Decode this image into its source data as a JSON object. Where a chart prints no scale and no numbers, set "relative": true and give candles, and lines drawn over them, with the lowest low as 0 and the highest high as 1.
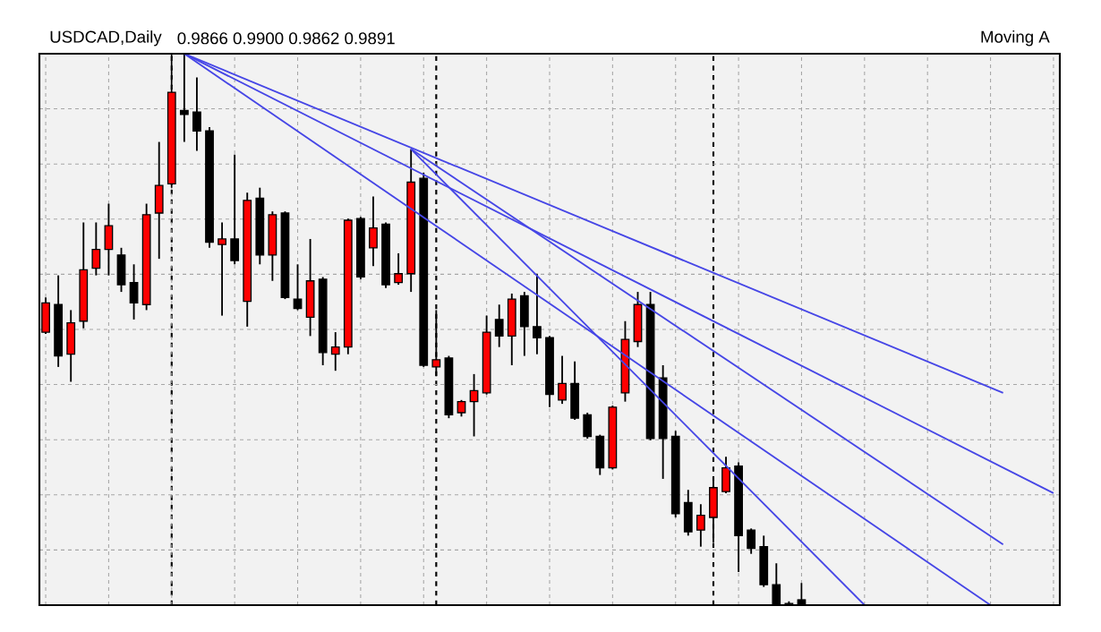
{
  "chart_data": {
    "type": "candlestick",
    "title": "USDCAD,Daily",
    "annotations": [
      "0.9866 0.9900 0.9862 0.9891",
      "Moving A"
    ],
    "relative": true,
    "grid": true,
    "categories": [
      null,
      null,
      null,
      null,
      null,
      null,
      null,
      null,
      null,
      null,
      null,
      null,
      null,
      null,
      null,
      null,
      null,
      null,
      null,
      null,
      null,
      null,
      null,
      null,
      null,
      null,
      null,
      null,
      null,
      null,
      null,
      null,
      null,
      null,
      null,
      null,
      null,
      null,
      null,
      null,
      null,
      null,
      null,
      null,
      null,
      null,
      null,
      null,
      null,
      null,
      null,
      null,
      null,
      null,
      null,
      null,
      null,
      null,
      null,
      null,
      null,
      null,
      null,
      null,
      null,
      null,
      null,
      null,
      null,
      null,
      null,
      null,
      null,
      null,
      null,
      null,
      null,
      null,
      null,
      null,
      null
    ],
    "ohlc": [
      [
        0.495,
        0.558,
        0.492,
        0.548
      ],
      [
        0.545,
        0.598,
        0.432,
        0.452
      ],
      [
        0.455,
        0.535,
        0.405,
        0.512
      ],
      [
        0.515,
        0.694,
        0.502,
        0.608
      ],
      [
        0.611,
        0.694,
        0.598,
        0.645
      ],
      [
        0.645,
        0.728,
        0.598,
        0.688
      ],
      [
        0.635,
        0.648,
        0.568,
        0.581
      ],
      [
        0.585,
        0.618,
        0.518,
        0.548
      ],
      [
        0.545,
        0.728,
        0.535,
        0.708
      ],
      [
        0.711,
        0.84,
        0.628,
        0.761
      ],
      [
        0.764,
        1.0,
        0.757,
        0.93
      ],
      [
        0.897,
        1.0,
        0.84,
        0.89
      ],
      [
        0.894,
        0.957,
        0.824,
        0.86
      ],
      [
        0.86,
        0.867,
        0.648,
        0.658
      ],
      [
        0.654,
        0.694,
        0.525,
        0.664
      ],
      [
        0.664,
        0.817,
        0.618,
        0.625
      ],
      [
        0.551,
        0.748,
        0.505,
        0.734
      ],
      [
        0.738,
        0.757,
        0.618,
        0.635
      ],
      [
        0.635,
        0.714,
        0.588,
        0.708
      ],
      [
        0.711,
        0.714,
        0.555,
        0.558
      ],
      [
        0.555,
        0.618,
        0.535,
        0.538
      ],
      [
        0.522,
        0.664,
        0.488,
        0.588
      ],
      [
        0.591,
        0.595,
        0.435,
        0.458
      ],
      [
        0.455,
        0.495,
        0.425,
        0.468
      ],
      [
        0.468,
        0.701,
        0.455,
        0.698
      ],
      [
        0.701,
        0.704,
        0.591,
        0.595
      ],
      [
        0.648,
        0.741,
        0.615,
        0.684
      ],
      [
        0.691,
        0.694,
        0.575,
        0.581
      ],
      [
        0.585,
        0.638,
        0.581,
        0.601
      ],
      [
        0.601,
        0.827,
        0.568,
        0.767
      ],
      [
        0.774,
        0.784,
        0.432,
        0.435
      ],
      [
        0.432,
        0.535,
        0.415,
        0.445
      ],
      [
        0.448,
        0.452,
        0.339,
        0.345
      ],
      [
        0.349,
        0.372,
        0.342,
        0.369
      ],
      [
        0.369,
        0.419,
        0.306,
        0.389
      ],
      [
        0.385,
        0.525,
        0.382,
        0.495
      ],
      [
        0.518,
        0.545,
        0.468,
        0.488
      ],
      [
        0.488,
        0.565,
        0.435,
        0.555
      ],
      [
        0.561,
        0.568,
        0.452,
        0.505
      ],
      [
        0.505,
        0.601,
        0.455,
        0.485
      ],
      [
        0.485,
        0.488,
        0.359,
        0.382
      ],
      [
        0.372,
        0.452,
        0.365,
        0.402
      ],
      [
        0.402,
        0.442,
        0.336,
        0.339
      ],
      [
        0.345,
        0.349,
        0.302,
        0.306
      ],
      [
        0.306,
        0.309,
        0.236,
        0.249
      ],
      [
        0.249,
        0.362,
        0.246,
        0.359
      ],
      [
        0.385,
        0.515,
        0.369,
        0.482
      ],
      [
        0.478,
        0.568,
        0.468,
        0.545
      ],
      [
        0.545,
        0.568,
        0.299,
        0.302
      ],
      [
        0.412,
        0.435,
        0.229,
        0.302
      ],
      [
        0.306,
        0.316,
        0.159,
        0.166
      ],
      [
        0.186,
        0.209,
        0.126,
        0.133
      ],
      [
        0.136,
        0.183,
        0.106,
        0.163
      ],
      [
        0.159,
        0.233,
        0.113,
        0.213
      ],
      [
        0.206,
        0.269,
        0.203,
        0.249
      ],
      [
        0.252,
        0.259,
        0.06,
        0.126
      ],
      [
        0.136,
        0.139,
        0.093,
        0.103
      ],
      [
        0.106,
        0.126,
        0.033,
        0.037
      ],
      [
        0.037,
        0.076,
        0.0,
        0.0
      ],
      [
        0.003,
        0.007,
        0.0,
        0.0
      ],
      [
        0.01,
        0.04,
        0.0,
        0.0
      ],
      null,
      null,
      null,
      null,
      null,
      null,
      null,
      null,
      null,
      null,
      null,
      null,
      null,
      null,
      null,
      null,
      null,
      null,
      null,
      null
    ],
    "colors": [
      "#ff0000",
      "#000000",
      "#ff0000",
      "#ff0000",
      "#ff0000",
      "#ff0000",
      "#000000",
      "#000000",
      "#ff0000",
      "#ff0000",
      "#ff0000",
      "#000000",
      "#000000",
      "#000000",
      "#ff0000",
      "#000000",
      "#ff0000",
      "#000000",
      "#ff0000",
      "#000000",
      "#000000",
      "#ff0000",
      "#000000",
      "#ff0000",
      "#ff0000",
      "#000000",
      "#ff0000",
      "#000000",
      "#ff0000",
      "#ff0000",
      "#000000",
      "#ff0000",
      "#000000",
      "#ff0000",
      "#ff0000",
      "#ff0000",
      "#000000",
      "#ff0000",
      "#000000",
      "#000000",
      "#000000",
      "#ff0000",
      "#000000",
      "#000000",
      "#000000",
      "#ff0000",
      "#ff0000",
      "#ff0000",
      "#000000",
      "#000000",
      "#000000",
      "#000000",
      "#ff0000",
      "#ff0000",
      "#ff0000",
      "#000000",
      "#000000",
      "#000000",
      "#000000",
      "#000000",
      "#000000",
      null,
      null,
      null,
      null,
      null,
      null,
      null,
      null,
      null,
      null,
      null,
      null,
      null,
      null,
      null,
      null,
      null,
      null,
      null,
      null
    ],
    "series": [
      {
        "type": "line",
        "color": "#4646e6",
        "values": [
          null,
          null,
          null,
          null,
          null,
          null,
          null,
          null,
          null,
          null,
          null,
          1.0,
          null,
          null,
          null,
          null,
          null,
          null,
          null,
          null,
          null,
          null,
          null,
          null,
          null,
          null,
          null,
          null,
          null,
          null,
          null,
          null,
          null,
          null,
          null,
          null,
          null,
          null,
          null,
          null,
          null,
          null,
          null,
          null,
          null,
          null,
          null,
          null,
          null,
          null,
          null,
          null,
          null,
          null,
          null,
          null,
          null,
          null,
          null,
          null,
          null,
          null,
          null,
          null,
          null,
          null,
          null,
          null,
          null,
          null,
          null,
          null,
          null,
          null,
          null,
          null,
          0.385,
          null,
          null,
          null,
          null
        ]
      },
      {
        "type": "line",
        "color": "#4646e6",
        "values": [
          null,
          null,
          null,
          null,
          null,
          null,
          null,
          null,
          null,
          null,
          null,
          1.0,
          null,
          null,
          null,
          null,
          null,
          null,
          null,
          null,
          null,
          null,
          null,
          null,
          null,
          null,
          null,
          null,
          null,
          null,
          null,
          null,
          null,
          null,
          null,
          null,
          null,
          null,
          null,
          null,
          null,
          null,
          null,
          null,
          null,
          null,
          null,
          null,
          null,
          null,
          null,
          null,
          null,
          null,
          null,
          null,
          null,
          null,
          null,
          null,
          null,
          null,
          null,
          null,
          null,
          null,
          null,
          null,
          null,
          null,
          null,
          null,
          null,
          null,
          null,
          null,
          null,
          null,
          null,
          null,
          0.203
        ]
      },
      {
        "type": "line",
        "color": "#4646e6",
        "values": [
          null,
          null,
          null,
          null,
          null,
          null,
          null,
          null,
          null,
          null,
          null,
          1.0,
          null,
          null,
          null,
          null,
          null,
          null,
          null,
          null,
          null,
          null,
          null,
          null,
          null,
          null,
          null,
          null,
          null,
          null,
          null,
          null,
          null,
          null,
          null,
          null,
          null,
          null,
          null,
          null,
          null,
          null,
          null,
          null,
          null,
          null,
          null,
          null,
          null,
          null,
          null,
          null,
          null,
          null,
          null,
          null,
          null,
          null,
          null,
          null,
          null,
          null,
          null,
          null,
          null,
          null,
          null,
          null,
          null,
          null,
          null,
          null,
          null,
          null,
          null,
          0.0,
          null,
          null,
          null,
          null,
          null
        ]
      },
      {
        "type": "line",
        "color": "#4646e6",
        "values": [
          null,
          null,
          null,
          null,
          null,
          null,
          null,
          null,
          null,
          null,
          null,
          null,
          null,
          null,
          null,
          null,
          null,
          null,
          null,
          null,
          null,
          null,
          null,
          null,
          null,
          null,
          null,
          null,
          null,
          0.827,
          null,
          null,
          null,
          null,
          null,
          null,
          null,
          null,
          null,
          null,
          null,
          null,
          null,
          null,
          null,
          null,
          null,
          null,
          null,
          null,
          null,
          null,
          null,
          null,
          null,
          null,
          null,
          null,
          null,
          null,
          null,
          null,
          null,
          null,
          null,
          null,
          null,
          null,
          null,
          null,
          null,
          null,
          null,
          null,
          null,
          null,
          0.11,
          null,
          null,
          null,
          null
        ]
      },
      {
        "type": "line",
        "color": "#4646e6",
        "values": [
          null,
          null,
          null,
          null,
          null,
          null,
          null,
          null,
          null,
          null,
          null,
          null,
          null,
          null,
          null,
          null,
          null,
          null,
          null,
          null,
          null,
          null,
          null,
          null,
          null,
          null,
          null,
          null,
          null,
          0.827,
          null,
          null,
          null,
          null,
          null,
          null,
          null,
          null,
          null,
          null,
          null,
          null,
          null,
          null,
          null,
          null,
          null,
          null,
          null,
          null,
          null,
          null,
          null,
          null,
          null,
          null,
          null,
          null,
          null,
          null,
          null,
          null,
          null,
          null,
          null,
          0.0,
          null,
          null,
          null,
          null,
          null,
          null,
          null,
          null,
          null,
          null,
          null,
          null,
          null,
          null,
          null
        ]
      }
    ]
  }
}
